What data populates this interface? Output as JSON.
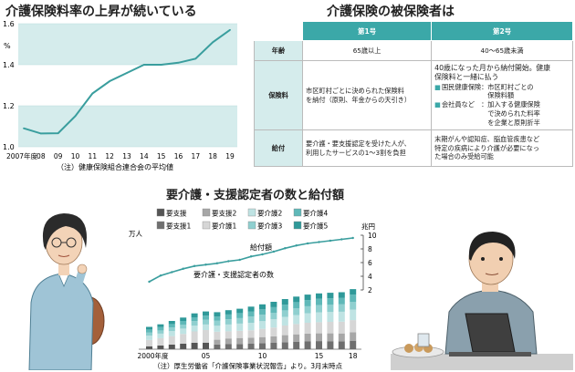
{
  "titles": {
    "rate_chart": "介護保険料率の上昇が続いている",
    "insured": "介護保険の被保険者は",
    "certified": "要介護・支援認定者の数と給付額"
  },
  "colors": {
    "teal": "#3ba8a8",
    "light_teal": "#d5ecec",
    "line": "#3a9e9e"
  },
  "chart_data": [
    {
      "type": "line",
      "title": "介護保険料率の上昇が続いている",
      "ylabel": "%",
      "ylim": [
        1.0,
        1.6
      ],
      "yticks": [
        "1.0",
        "1.2",
        "1.4",
        "1.6"
      ],
      "categories": [
        "2007年度",
        "08",
        "09",
        "10",
        "11",
        "12",
        "13",
        "14",
        "15",
        "16",
        "17",
        "18",
        "19"
      ],
      "values": [
        1.09,
        1.065,
        1.066,
        1.15,
        1.26,
        1.32,
        1.36,
        1.4,
        1.4,
        1.41,
        1.43,
        1.51,
        1.57
      ],
      "note": "（注）健康保険組合連合会の平均値"
    },
    {
      "type": "bar",
      "title": "要介護・支援認定者の数と給付額",
      "ylabel": "万人",
      "y2label": "兆円",
      "y2lim": [
        2,
        10
      ],
      "y2ticks": [
        "2",
        "4",
        "6",
        "8",
        "10"
      ],
      "xtick_labels": [
        "2000年度",
        "05",
        "10",
        "15",
        "18"
      ],
      "categories": [
        "2000",
        "01",
        "02",
        "03",
        "04",
        "05",
        "06",
        "07",
        "08",
        "09",
        "10",
        "11",
        "12",
        "13",
        "14",
        "15",
        "16",
        "17",
        "18"
      ],
      "legend": [
        "要支援",
        "要支援2",
        "要介護2",
        "要介護4",
        "要支援1",
        "要介護1",
        "要介護3",
        "要介護5"
      ],
      "series": [
        {
          "name": "要支援",
          "values": [
            32,
            40,
            50,
            60,
            70,
            72,
            0,
            0,
            0,
            0,
            0,
            0,
            0,
            0,
            0,
            0,
            0,
            0,
            0
          ]
        },
        {
          "name": "要支援1",
          "values": [
            0,
            0,
            0,
            0,
            0,
            0,
            52,
            55,
            57,
            60,
            66,
            70,
            77,
            83,
            88,
            89,
            88,
            87,
            93
          ]
        },
        {
          "name": "要支援2",
          "values": [
            0,
            0,
            0,
            0,
            0,
            0,
            52,
            63,
            66,
            67,
            67,
            71,
            77,
            80,
            83,
            85,
            86,
            86,
            93
          ]
        },
        {
          "name": "要介護1",
          "values": [
            70,
            81,
            94,
            107,
            125,
            138,
            88,
            78,
            79,
            81,
            90,
            97,
            106,
            113,
            119,
            122,
            126,
            129,
            133
          ]
        },
        {
          "name": "要介護2",
          "values": [
            48,
            50,
            55,
            59,
            63,
            61,
            65,
            75,
            79,
            81,
            85,
            90,
            95,
            99,
            104,
            108,
            108,
            109,
            115
          ]
        },
        {
          "name": "要介護3",
          "values": [
            32,
            35,
            39,
            44,
            50,
            53,
            55,
            58,
            60,
            70,
            71,
            72,
            71,
            75,
            77,
            79,
            79,
            81,
            86
          ]
        },
        {
          "name": "要介護4",
          "values": [
            34,
            36,
            38,
            40,
            42,
            44,
            46,
            52,
            55,
            56,
            58,
            61,
            63,
            66,
            68,
            70,
            72,
            73,
            79
          ]
        },
        {
          "name": "要介護5",
          "values": [
            29,
            31,
            34,
            37,
            43,
            46,
            48,
            47,
            48,
            52,
            55,
            59,
            61,
            61,
            60,
            59,
            60,
            60,
            60
          ]
        },
        {
          "name": "給付額",
          "axis": "y2",
          "values": [
            3.2,
            4.1,
            4.6,
            5.1,
            5.5,
            5.7,
            5.9,
            6.2,
            6.4,
            6.9,
            7.2,
            7.6,
            8.1,
            8.5,
            8.8,
            9.0,
            9.2,
            9.4,
            9.6
          ]
        }
      ],
      "annotations": [
        "給付額",
        "要介護・支援認定者の数"
      ],
      "note": "（注）厚生労働省「介護保険事業状況報告」より。3月末時点"
    }
  ],
  "table": {
    "col_headers": [
      "第1号",
      "第2号"
    ],
    "rows": [
      {
        "label": "年齢",
        "first": [
          "65歳以上"
        ],
        "second": [
          "40～65歳未満"
        ]
      },
      {
        "label": "保険料",
        "first": [
          "市区町村ごとに決められた保険料",
          "を納付（原則、年金からの天引き）"
        ],
        "second": [
          "40歳になった月から納付開始。健康",
          "保険料と一緒に払う"
        ],
        "second_items": [
          {
            "label": "国民健康保険：",
            "lines": [
              "市区町村ごとの",
              "保険料額"
            ]
          },
          {
            "label": "会社員など　：",
            "lines": [
              "加入する健康保険",
              "で決められた料率",
              "を企業と原則折半"
            ]
          }
        ]
      },
      {
        "label": "給付",
        "first": [
          "要介護・要支援認定を受けた人が、",
          "利用したサービスの1～3割を負担"
        ],
        "second": [
          "末期がんや認知症、脳血管疾患など",
          "特定の疾病により介護が必要になっ",
          "た場合のみ受給可能"
        ]
      }
    ]
  }
}
